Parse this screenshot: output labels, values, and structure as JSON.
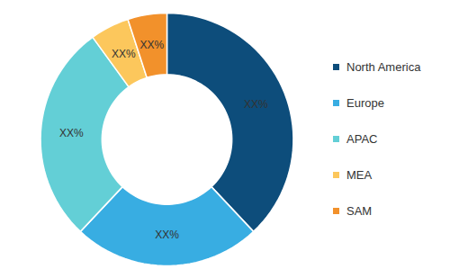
{
  "chart_data": {
    "type": "donut",
    "categories": [
      "North America",
      "Europe",
      "APAC",
      "MEA",
      "SAM"
    ],
    "values": [
      38,
      24,
      28,
      5,
      5
    ],
    "value_labels": [
      "XX%",
      "XX%",
      "XX%",
      "XX%",
      "XX%"
    ],
    "colors": [
      "#0d4d7b",
      "#38ade2",
      "#63cfd6",
      "#fcc75c",
      "#f2912b"
    ],
    "data_labels": true,
    "legend": "right"
  }
}
